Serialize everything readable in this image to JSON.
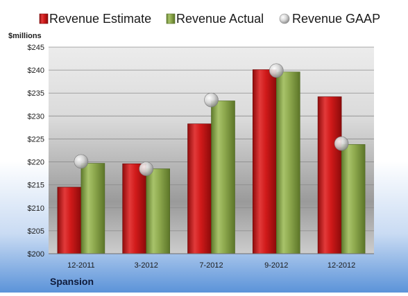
{
  "chart_data": {
    "type": "bar",
    "company": "Spansion",
    "y_unit_label": "$millions",
    "categories": [
      "12-2011",
      "3-2012",
      "7-2012",
      "9-2012",
      "12-2012"
    ],
    "series": [
      {
        "name": "Revenue Estimate",
        "kind": "bar",
        "color": "#d42020",
        "values": [
          214.5,
          219.6,
          228.3,
          240.1,
          234.2
        ]
      },
      {
        "name": "Revenue Actual",
        "kind": "bar",
        "color": "#8faa4f",
        "values": [
          219.7,
          218.5,
          233.3,
          239.6,
          223.8
        ]
      },
      {
        "name": "Revenue GAAP",
        "kind": "marker",
        "color": "#c8c8c8",
        "values": [
          220.1,
          218.5,
          233.5,
          239.9,
          224.0
        ]
      }
    ],
    "yticks": [
      "$200",
      "$205",
      "$210",
      "$215",
      "$220",
      "$225",
      "$230",
      "$235",
      "$240",
      "$245"
    ],
    "ylim": [
      200,
      245
    ],
    "grid": true,
    "legend_position": "top"
  }
}
